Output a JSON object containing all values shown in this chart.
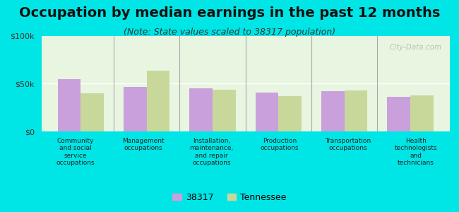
{
  "title": "Occupation by median earnings in the past 12 months",
  "subtitle": "(Note: State values scaled to 38317 population)",
  "background_color": "#00e5e5",
  "plot_bg_color_top": "#e8f5e0",
  "plot_bg_color_bottom": "#f5fff0",
  "categories": [
    "Community\nand social\nservice\noccupations",
    "Management\noccupations",
    "Installation,\nmaintenance,\nand repair\noccupations",
    "Production\noccupations",
    "Transportation\noccupations",
    "Health\ntechnologists\nand\ntechnicians"
  ],
  "values_38317": [
    55000,
    47000,
    45000,
    41000,
    42000,
    36000
  ],
  "values_tennessee": [
    40000,
    64000,
    44000,
    37000,
    43000,
    38000
  ],
  "color_38317": "#c9a0dc",
  "color_tennessee": "#c8d89a",
  "ylim": [
    0,
    100000
  ],
  "yticks": [
    0,
    50000,
    100000
  ],
  "ytick_labels": [
    "$0",
    "$50k",
    "$100k"
  ],
  "legend_38317": "38317",
  "legend_tennessee": "Tennessee",
  "bar_width": 0.35,
  "title_fontsize": 14,
  "subtitle_fontsize": 9,
  "tick_fontsize": 8,
  "legend_fontsize": 9,
  "watermark": "City-Data.com"
}
